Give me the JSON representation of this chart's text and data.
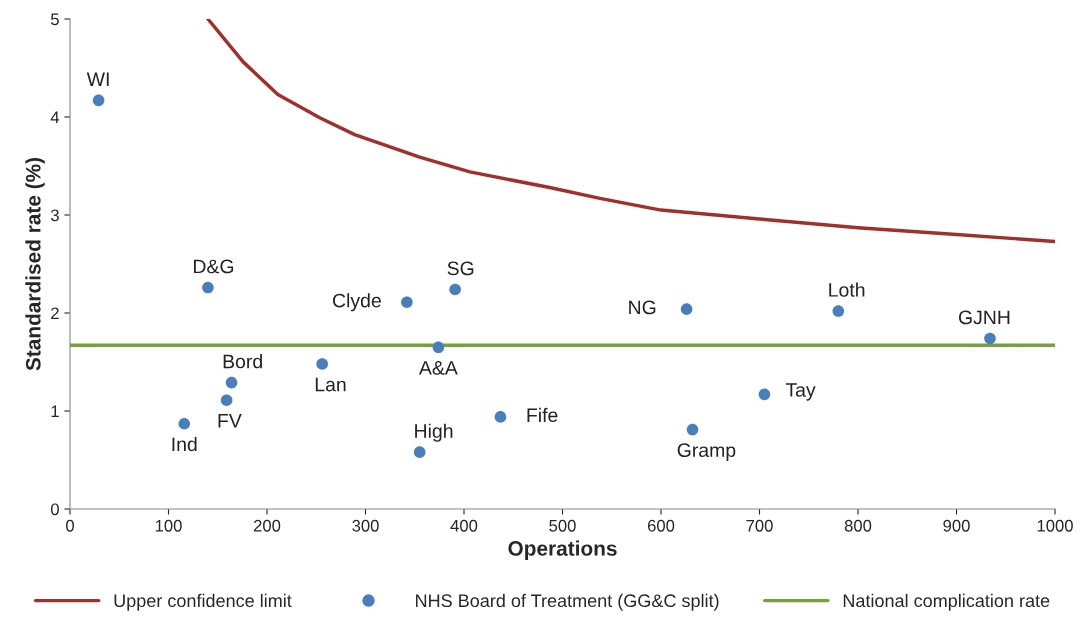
{
  "chart_data": {
    "type": "scatter",
    "xlabel": "Operations",
    "ylabel": "Standardised rate (%)",
    "xlim": [
      0,
      1000
    ],
    "ylim": [
      0,
      5
    ],
    "xticks": [
      0,
      100,
      200,
      300,
      400,
      500,
      600,
      700,
      800,
      900,
      1000
    ],
    "yticks": [
      0,
      1,
      2,
      3,
      4,
      5
    ],
    "grid": false,
    "legend": "bottom",
    "series": [
      {
        "name": "Upper confidence limit",
        "type": "line",
        "marker": "none",
        "color": "#a0302d",
        "x": [
          140,
          176,
          211,
          254,
          289,
          355,
          406,
          487,
          538,
          600,
          700,
          800,
          900,
          1000
        ],
        "values": [
          5.0,
          4.56,
          4.23,
          3.99,
          3.82,
          3.59,
          3.44,
          3.28,
          3.17,
          3.05,
          2.96,
          2.87,
          2.8,
          2.73
        ]
      },
      {
        "name": "NHS Board of Treatment (GG&C split)",
        "marker": "circle",
        "color": "#4a7ebb",
        "x": [
          29,
          140,
          116,
          159,
          164,
          256,
          342,
          391,
          374,
          355,
          437,
          626,
          632,
          705,
          780,
          934
        ],
        "values": [
          4.17,
          2.26,
          0.87,
          1.11,
          1.29,
          1.48,
          2.11,
          2.24,
          1.65,
          0.58,
          0.94,
          2.04,
          0.81,
          1.17,
          2.02,
          1.74
        ],
        "value_labels": [
          "WI",
          "D&G",
          "Ind",
          "FV",
          "Bord",
          "Lan",
          "Clyde",
          "SG",
          "A&A",
          "High",
          "Fife",
          "NG",
          "Gramp",
          "Tay",
          "Loth",
          "GJNH"
        ]
      },
      {
        "name": "National complication rate",
        "type": "line",
        "marker": "none",
        "color": "#77a13b",
        "x": [
          0,
          1000
        ],
        "values": [
          1.67,
          1.67
        ]
      }
    ]
  }
}
